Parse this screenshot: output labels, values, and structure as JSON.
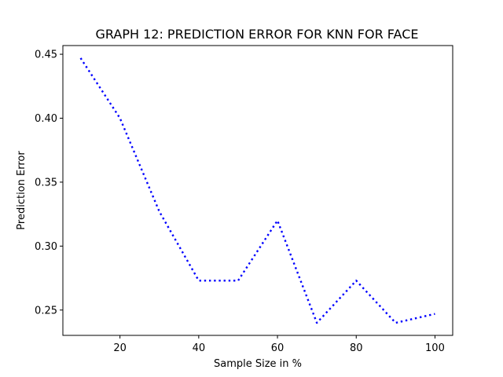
{
  "chart_data": {
    "type": "line",
    "title": "GRAPH 12: PREDICTION ERROR FOR KNN FOR FACE",
    "xlabel": "Sample Size in %",
    "ylabel": "Prediction Error",
    "x": [
      10,
      20,
      30,
      40,
      50,
      60,
      70,
      80,
      90,
      100
    ],
    "series": [
      {
        "values": [
          0.447,
          0.4,
          0.327,
          0.273,
          0.273,
          0.32,
          0.24,
          0.273,
          0.24,
          0.247
        ],
        "color": "#0000ff",
        "line_style": "dotted"
      }
    ],
    "xlim": [
      5.5,
      104.5
    ],
    "ylim": [
      0.2302,
      0.4568
    ],
    "x_ticks": [
      20,
      40,
      60,
      80,
      100
    ],
    "y_ticks": [
      0.25,
      0.3,
      0.35,
      0.4,
      0.45
    ],
    "x_tick_labels": [
      "20",
      "40",
      "60",
      "80",
      "100"
    ],
    "y_tick_labels": [
      "0.25",
      "0.30",
      "0.35",
      "0.40",
      "0.45"
    ],
    "grid": false,
    "legend": "none"
  }
}
